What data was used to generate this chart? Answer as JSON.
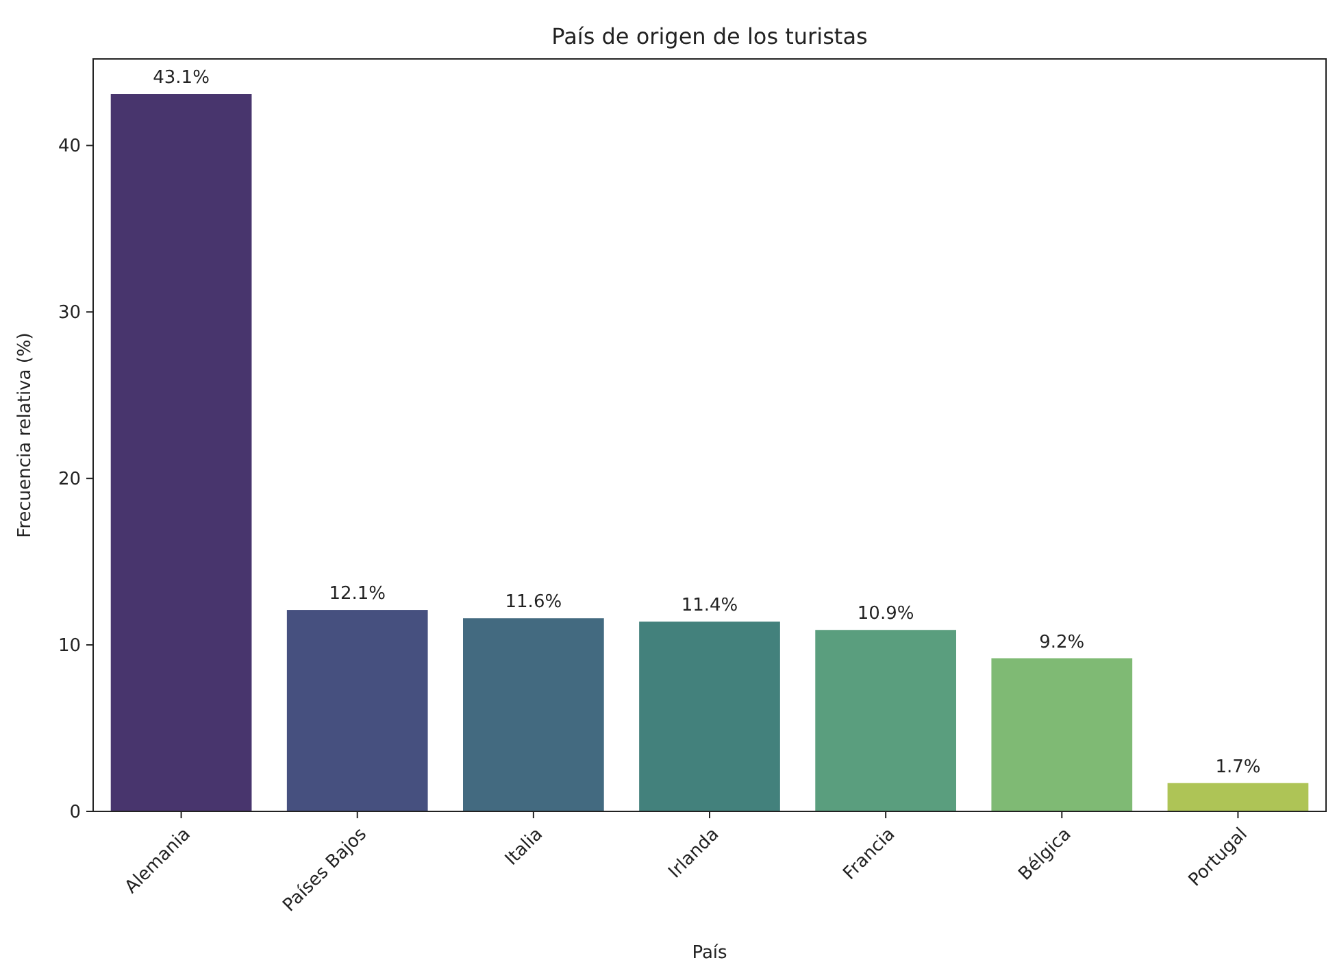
{
  "chart_data": {
    "type": "bar",
    "title": "País de origen de los turistas",
    "xlabel": "País",
    "ylabel": "Frecuencia relativa (%)",
    "categories": [
      "Alemania",
      "Países Bajos",
      "Italia",
      "Irlanda",
      "Francia",
      "Bélgica",
      "Portugal"
    ],
    "values": [
      43.1,
      12.1,
      11.6,
      11.4,
      10.9,
      9.2,
      1.7
    ],
    "value_labels": [
      "43.1%",
      "12.1%",
      "11.6%",
      "11.4%",
      "10.9%",
      "9.2%",
      "1.7%"
    ],
    "colors": [
      "#48356d",
      "#46507f",
      "#436a80",
      "#43817c",
      "#5a9e7e",
      "#7fba74",
      "#aec456"
    ],
    "ylim": [
      0,
      45.2
    ],
    "yticks": [
      0,
      10,
      20,
      30,
      40
    ]
  }
}
